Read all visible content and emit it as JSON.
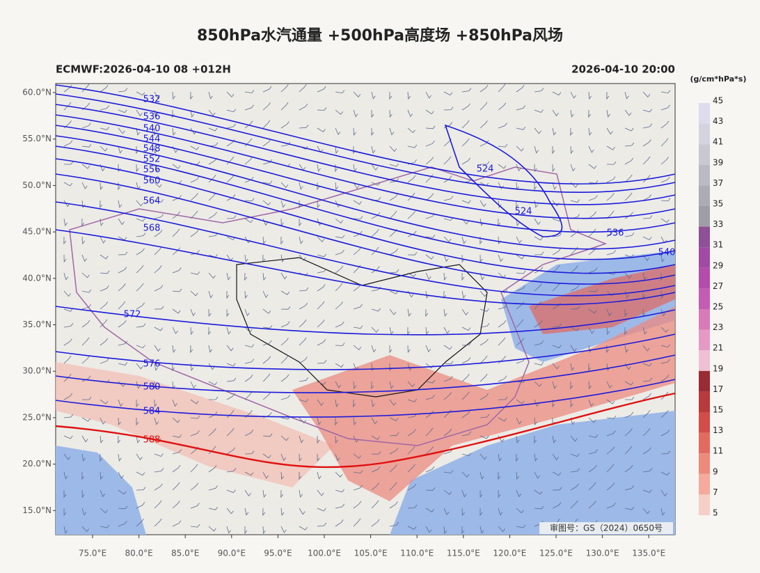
{
  "header": {
    "title": "850hPa水汽通量 +500hPa高度场 +850hPa风场",
    "left": "ECMWF:2026-04-10 08 +012H",
    "right": "2026-04-10 20:00"
  },
  "map": {
    "lat_labels": [
      "60.0°N",
      "55.0°N",
      "50.0°N",
      "45.0°N",
      "40.0°N",
      "35.0°N",
      "30.0°N",
      "25.0°N",
      "20.0°N",
      "15.0°N"
    ],
    "lon_labels": [
      "75.0°E",
      "80.0°E",
      "85.0°E",
      "90.0°E",
      "95.0°E",
      "100.0°E",
      "105.0°E",
      "110.0°E",
      "115.0°E",
      "120.0°E",
      "125.0°E",
      "130.0°E",
      "135.0°E"
    ],
    "contour_labels": [
      "532",
      "536",
      "540",
      "544",
      "548",
      "552",
      "556",
      "560",
      "564",
      "568",
      "572",
      "576",
      "580",
      "584",
      "588",
      "524",
      "524",
      "536",
      "540"
    ],
    "credit": "审图号：GS（2024）0650号"
  },
  "colorbar": {
    "unit": "(g/cm*hPa*s)",
    "labels": [
      "45",
      "43",
      "41",
      "39",
      "37",
      "35",
      "33",
      "31",
      "29",
      "27",
      "25",
      "23",
      "21",
      "19",
      "17",
      "15",
      "13",
      "11",
      "9",
      "7",
      "5"
    ]
  }
}
